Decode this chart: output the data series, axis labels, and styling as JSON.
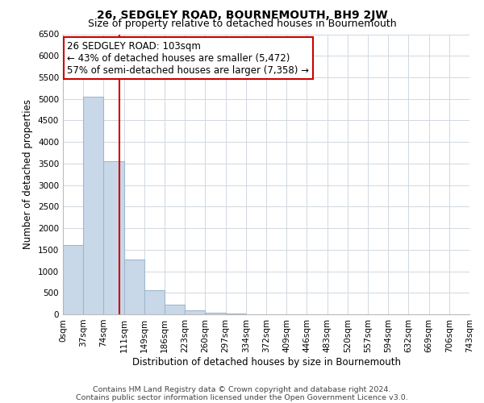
{
  "title": "26, SEDGLEY ROAD, BOURNEMOUTH, BH9 2JW",
  "subtitle": "Size of property relative to detached houses in Bournemouth",
  "xlabel": "Distribution of detached houses by size in Bournemouth",
  "ylabel": "Number of detached properties",
  "bar_color": "#c8d8e8",
  "bar_edge_color": "#a0b8cc",
  "grid_color": "#d0d8e0",
  "annotation_box_color": "#cc0000",
  "vline_color": "#cc0000",
  "annotation_text": "26 SEDGLEY ROAD: 103sqm\n← 43% of detached houses are smaller (5,472)\n57% of semi-detached houses are larger (7,358) →",
  "footnote1": "Contains HM Land Registry data © Crown copyright and database right 2024.",
  "footnote2": "Contains public sector information licensed under the Open Government Licence v3.0.",
  "xlabels": [
    "0sqm",
    "37sqm",
    "74sqm",
    "111sqm",
    "149sqm",
    "186sqm",
    "223sqm",
    "260sqm",
    "297sqm",
    "334sqm",
    "372sqm",
    "409sqm",
    "446sqm",
    "483sqm",
    "520sqm",
    "557sqm",
    "594sqm",
    "632sqm",
    "669sqm",
    "706sqm",
    "743sqm"
  ],
  "bar_values": [
    1600,
    5050,
    3560,
    1280,
    570,
    220,
    90,
    30,
    15,
    8,
    5,
    3,
    2,
    2,
    1,
    1,
    1,
    0,
    0,
    0
  ],
  "property_sqm": 103,
  "bin_width": 37,
  "ylim": [
    0,
    6500
  ],
  "yticks": [
    0,
    500,
    1000,
    1500,
    2000,
    2500,
    3000,
    3500,
    4000,
    4500,
    5000,
    5500,
    6000,
    6500
  ],
  "title_fontsize": 10,
  "subtitle_fontsize": 9,
  "axis_label_fontsize": 8.5,
  "tick_fontsize": 7.5,
  "annotation_fontsize": 8.5,
  "footnote_fontsize": 6.8
}
